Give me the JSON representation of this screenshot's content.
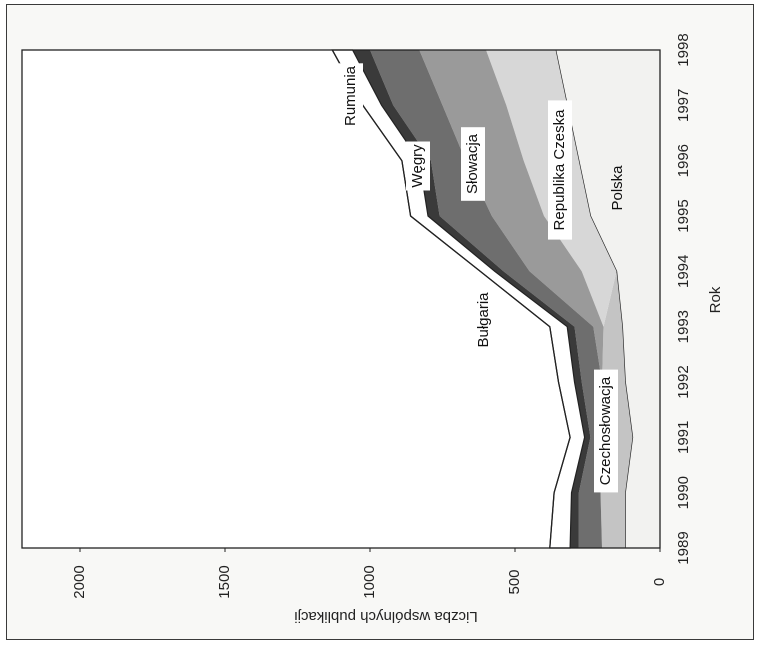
{
  "chart_data": {
    "type": "area",
    "stacked": true,
    "orientation": "rotated 90 degrees clockwise",
    "xlabel": "Rok",
    "ylabel": "Liczba wspólnych publikacji",
    "x": [
      1989,
      1990,
      1991,
      1992,
      1993,
      1994,
      1995,
      1996,
      1997,
      1998
    ],
    "ylim": [
      0,
      2200
    ],
    "yticks": [
      0,
      500,
      1000,
      1500,
      2000
    ],
    "grid": false,
    "series": [
      {
        "name": "Polska",
        "color": "#f2f2f0",
        "values": [
          120,
          120,
          95,
          120,
          130,
          150,
          240,
          280,
          320,
          360
        ]
      },
      {
        "name": "Czechosłowacja",
        "color": "#c4c4c4",
        "values": [
          80,
          85,
          85,
          80,
          65,
          0,
          0,
          0,
          0,
          0
        ]
      },
      {
        "name": "Republika Czeska",
        "color": "#d7d7d7",
        "values": [
          0,
          0,
          0,
          0,
          0,
          120,
          160,
          190,
          210,
          240
        ]
      },
      {
        "name": "Słowacja",
        "color": "#9a9a9a",
        "values": [
          0,
          0,
          0,
          0,
          35,
          180,
          180,
          200,
          220,
          230
        ]
      },
      {
        "name": "Węgry",
        "color": "#6e6e6e",
        "values": [
          80,
          75,
          60,
          70,
          65,
          90,
          180,
          120,
          170,
          170
        ]
      },
      {
        "name": "Rumunia",
        "color": "#3a3a3a",
        "values": [
          30,
          25,
          20,
          25,
          25,
          30,
          40,
          40,
          40,
          60
        ]
      },
      {
        "name": "Bułgaria",
        "color": "#ffffff",
        "values": [
          70,
          60,
          50,
          55,
          60,
          50,
          60,
          60,
          65,
          70
        ]
      }
    ],
    "series_labels": [
      "Bułgaria",
      "Rumunia",
      "Węgry",
      "Słowacja",
      "Republika Czeska",
      "Polska",
      "Czechosłowacja"
    ]
  }
}
